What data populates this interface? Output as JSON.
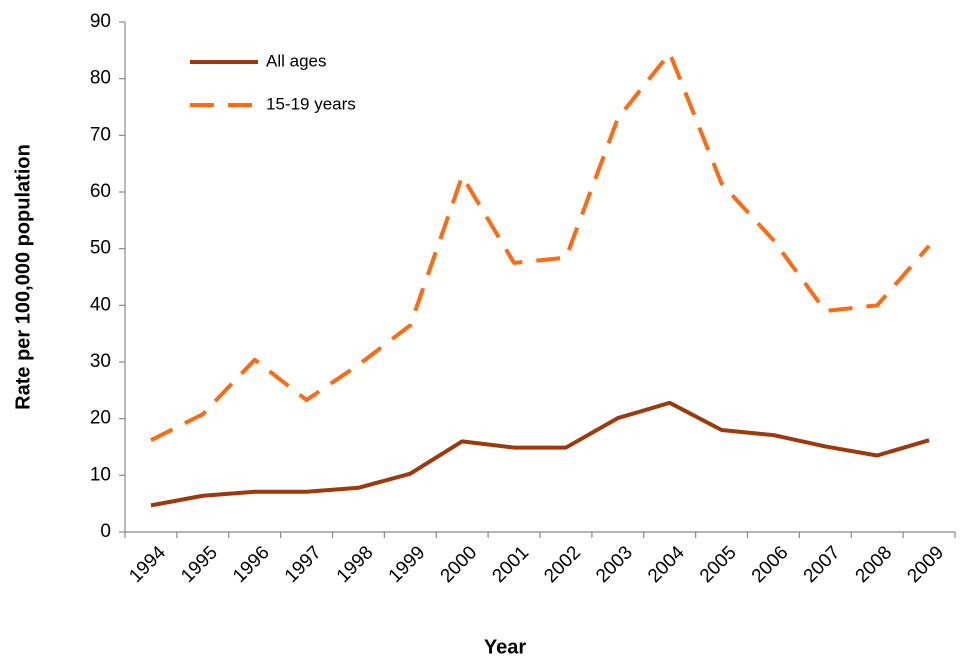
{
  "chart_data": {
    "type": "line",
    "x_label": "Year",
    "y_label": "Rate per 100,000 population",
    "categories": [
      "1994",
      "1995",
      "1996",
      "1997",
      "1998",
      "1999",
      "2000",
      "2001",
      "2002",
      "2003",
      "2004",
      "2005",
      "2006",
      "2007",
      "2008",
      "2009"
    ],
    "series": [
      {
        "name": "All ages",
        "color": "#9c3a0e",
        "dashed": false,
        "values": [
          4.7,
          6.4,
          7.1,
          7.1,
          7.8,
          10.3,
          16.0,
          14.9,
          14.9,
          20.1,
          22.8,
          18.0,
          17.1,
          15.1,
          13.5,
          16.2
        ]
      },
      {
        "name": "15-19 years",
        "color": "#ff6a10",
        "dashed": true,
        "values": [
          16.2,
          20.8,
          30.4,
          23.3,
          29.5,
          36.5,
          62.8,
          47.5,
          48.4,
          73.0,
          84.5,
          61.5,
          51.5,
          39.0,
          40.0,
          50.5
        ]
      }
    ],
    "ylim": [
      0,
      90
    ],
    "yticks": [
      0,
      10,
      20,
      30,
      40,
      50,
      60,
      70,
      80,
      90
    ],
    "grid": false,
    "legend": "top-left"
  }
}
